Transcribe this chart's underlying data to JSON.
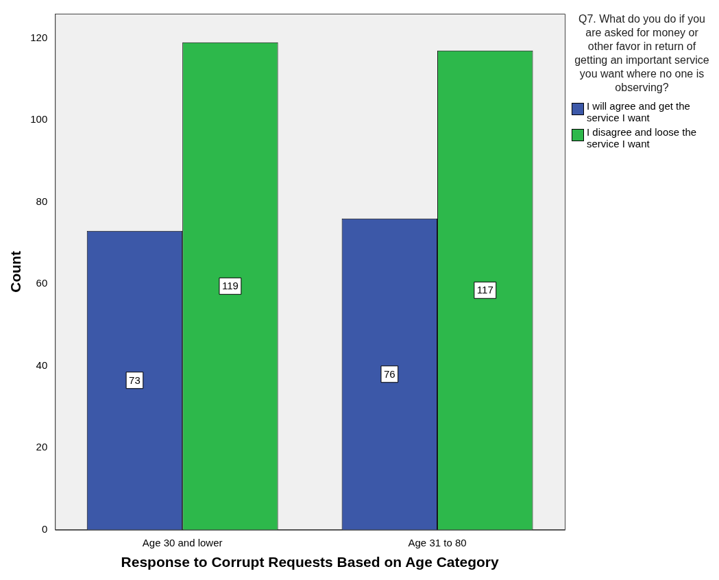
{
  "chart_data": {
    "type": "bar",
    "xlabel": "Response to Corrupt Requests Based on Age Category",
    "ylabel": "Count",
    "categories": [
      "Age 30 and lower",
      "Age 31 to 80"
    ],
    "series": [
      {
        "name": "I will agree and get the service I want",
        "color": "#3c58a8",
        "values": [
          73,
          76
        ]
      },
      {
        "name": "I disagree and loose the service I want",
        "color": "#2db84b",
        "values": [
          119,
          117
        ]
      }
    ],
    "ylim": [
      0,
      126
    ],
    "yticks": [
      0,
      20,
      40,
      60,
      80,
      100,
      120
    ],
    "grid": false,
    "data_labels": true,
    "legend": "right",
    "legend_title": "Q7. What do you do if you are asked for money or other favor in return of getting an important service you want where no one is observing?"
  }
}
